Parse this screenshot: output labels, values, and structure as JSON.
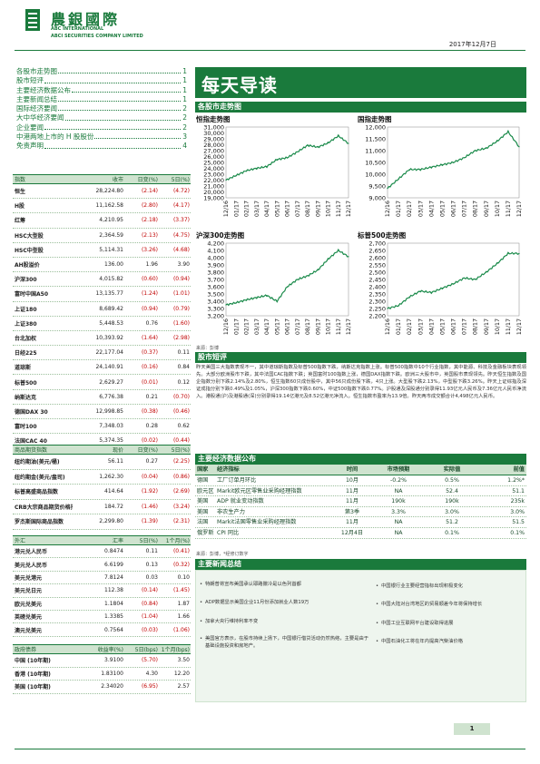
{
  "header": {
    "brand_cn": "農銀國際",
    "brand_en_1": "ABC INTERNATIONAL",
    "brand_en_2": "ABCI SECURITIES COMPANY LIMITED",
    "date": "2017年12月7日",
    "brand_color": "#1a7a3c"
  },
  "toc": [
    {
      "title": "各股市走势图",
      "page": "1"
    },
    {
      "title": "股市短评",
      "page": "1"
    },
    {
      "title": "主要经济数据公布",
      "page": "1"
    },
    {
      "title": "主要新闻总结",
      "page": "1"
    },
    {
      "title": "国际经济要闻",
      "page": "2"
    },
    {
      "title": "大中华经济要闻",
      "page": "2"
    },
    {
      "title": "企业要闻",
      "page": "2"
    },
    {
      "title": "中港两地上市的 H 股股份",
      "page": "3"
    },
    {
      "title": "免责声明",
      "page": "4"
    }
  ],
  "index_table": {
    "headers": [
      "指数",
      "收市",
      "日变(%)",
      "5日(%)"
    ],
    "rows": [
      [
        "恒生",
        "28,224.80",
        "(2.14)",
        "(4.72)"
      ],
      [
        "H股",
        "11,162.58",
        "(2.80)",
        "(4.17)"
      ],
      [
        "红筹",
        "4,210.95",
        "(2.18)",
        "(3.37)"
      ],
      [
        "HSC大型股",
        "2,364.59",
        "(2.13)",
        "(4.75)"
      ],
      [
        "HSC中型股",
        "5,114.31",
        "(3.26)",
        "(4.68)"
      ],
      [
        "AH股溢价",
        "136.00",
        "1.96",
        "3.90"
      ],
      [
        "沪深300",
        "4,015.82",
        "(0.60)",
        "(0.94)"
      ],
      [
        "富时中国A50",
        "13,135.77",
        "(1.24)",
        "(1.01)"
      ],
      [
        "上证180",
        "8,689.42",
        "(0.94)",
        "(0.79)"
      ],
      [
        "上证380",
        "5,448.53",
        "0.76",
        "(1.60)"
      ],
      [
        "台北加权",
        "10,393.92",
        "(1.64)",
        "(2.98)"
      ],
      [
        "日经225",
        "22,177.04",
        "(0.37)",
        "0.11"
      ],
      [
        "道琼斯",
        "24,140.91",
        "(0.16)",
        "0.84"
      ],
      [
        "标普500",
        "2,629.27",
        "(0.01)",
        "0.12"
      ],
      [
        "纳斯达克",
        "6,776.38",
        "0.21",
        "(0.70)"
      ],
      [
        "德国DAX 30",
        "12,998.85",
        "(0.38)",
        "(0.46)"
      ],
      [
        "富时100",
        "7,348.03",
        "0.28",
        "0.62"
      ],
      [
        "法国CAC 40",
        "5,374.35",
        "(0.02)",
        "(0.44)"
      ]
    ]
  },
  "commodity_table": {
    "headers": [
      "商品期货指数",
      "现价",
      "日变(%)",
      "5日(%)"
    ],
    "rows": [
      [
        "纽约期油(美元/桶)",
        "56.11",
        "0.27",
        "(2.25)"
      ],
      [
        "纽约期金(美元/盎司)",
        "1,262.30",
        "(0.04)",
        "(0.86)"
      ],
      [
        "标普高盛商品指数",
        "414.64",
        "(1.92)",
        "(2.69)"
      ],
      [
        "CRB大宗商品期货价格指数",
        "184.72",
        "(1.46)",
        "(3.24)"
      ],
      [
        "罗杰斯国际商品指数",
        "2,299.80",
        "(1.39)",
        "(2.31)"
      ]
    ]
  },
  "fx_table": {
    "headers": [
      "外汇",
      "汇率",
      "5日(%)",
      "1个月(%)"
    ],
    "rows": [
      [
        "港元兑人民币",
        "0.8474",
        "0.11",
        "(0.41)"
      ],
      [
        "美元兑人民币",
        "6.6199",
        "0.13",
        "(0.32)"
      ],
      [
        "美元兑港元",
        "7.8124",
        "0.03",
        "0.10"
      ],
      [
        "美元兑日元",
        "112.38",
        "(0.14)",
        "(1.45)"
      ],
      [
        "欧元兑美元",
        "1.1804",
        "(0.84)",
        "1.87"
      ],
      [
        "英磅兑美元",
        "1.3385",
        "(1.04)",
        "1.66"
      ],
      [
        "澳元兑美元",
        "0.7564",
        "(0.03)",
        "(1.06)"
      ]
    ]
  },
  "bond_table": {
    "headers": [
      "政府债券",
      "收益率(%)",
      "5日(bps)",
      "1个月(bps)"
    ],
    "rows": [
      [
        "中国 (10年期)",
        "3.9100",
        "(5.70)",
        "3.50"
      ],
      [
        "香港 (10年期)",
        "1.83100",
        "4.30",
        "12.20"
      ],
      [
        "美国 (10年期)",
        "2.34020",
        "(6.95)",
        "2.57"
      ]
    ]
  },
  "main": {
    "title": "每天导读",
    "charts_section": "各股市走势图",
    "source_label": "来源：彭博",
    "market_section": "股市短评",
    "market_text": "昨天美国三大指数表现不一，其中道琼斯指数及标普500指数下跌，纳斯达克指数上涨。标普500指数中10个行业指数，其中能源、科技及金融板块表现领先。大部分欧洲股市下跌，其中法国CAC指数下跌；英国富时100指数上涨，德国DAX指数下跌。欧洲三大股市中，英国股市表现领先。昨天恒生指数及国企指数分别下跌2.14%及2.80%，恒生指数60只成份股中，其中56只成份股下跌，4只上涨。大型股下跌2.13%，中型股下跌3.26%。昨天上证综指及深证成指分别下跌0.49%及1.05%，沪深300指数下跌0.60%，中证500指数下跌0.77%。沪股通及深股通分别录得11.93亿元人民币及7.36亿元人民币净流入。港股通(沪)及港股通(深)分别录得19.14亿港元及8.52亿港元净流入。恒生指数市盈率为13.9倍。昨天两市成交额合计4,498亿元人民币。"
  },
  "chart_data": [
    {
      "type": "line",
      "title": "恒指走势图",
      "x": [
        "12/16",
        "01/17",
        "02/17",
        "03/17",
        "04/17",
        "05/17",
        "06/17",
        "07/17",
        "08/17",
        "09/17",
        "10/17",
        "11/17",
        "12/17"
      ],
      "yticks": [
        "19,000",
        "20,000",
        "21,000",
        "22,000",
        "23,000",
        "24,000",
        "25,000",
        "26,000",
        "27,000",
        "28,000",
        "29,000",
        "30,000",
        "31,000"
      ],
      "ylim": [
        19000,
        31000
      ],
      "values": [
        22000,
        22800,
        23600,
        24000,
        24300,
        25500,
        25800,
        26800,
        27900,
        27600,
        28300,
        29500,
        28224
      ],
      "color": "#1a8a4a"
    },
    {
      "type": "line",
      "title": "国指走势图",
      "x": [
        "12/16",
        "01/17",
        "02/17",
        "03/17",
        "04/17",
        "05/17",
        "06/17",
        "07/17",
        "08/17",
        "09/17",
        "10/17",
        "11/17",
        "12/17"
      ],
      "yticks": [
        "9,000",
        "9,500",
        "10,000",
        "10,500",
        "11,000",
        "11,500",
        "12,000"
      ],
      "ylim": [
        9000,
        12000
      ],
      "values": [
        9400,
        9800,
        10200,
        10200,
        10300,
        10400,
        10500,
        10700,
        11000,
        11100,
        11400,
        11800,
        11162
      ],
      "color": "#1a8a4a"
    },
    {
      "type": "line",
      "title": "沪深300走势图",
      "x": [
        "12/16",
        "01/17",
        "02/17",
        "03/17",
        "04/17",
        "05/17",
        "06/17",
        "07/17",
        "08/17",
        "09/17",
        "10/17",
        "11/17",
        "12/17"
      ],
      "yticks": [
        "3,200",
        "3,300",
        "3,400",
        "3,500",
        "3,600",
        "3,700",
        "3,800",
        "3,900",
        "4,000",
        "4,100",
        "4,200"
      ],
      "ylim": [
        3200,
        4200
      ],
      "values": [
        3350,
        3380,
        3420,
        3450,
        3480,
        3400,
        3600,
        3700,
        3750,
        3830,
        3980,
        4100,
        4015
      ],
      "color": "#1a8a4a"
    },
    {
      "type": "line",
      "title": "标普500走势图",
      "x": [
        "12/16",
        "01/17",
        "02/17",
        "03/17",
        "04/17",
        "05/17",
        "06/17",
        "07/17",
        "08/17",
        "09/17",
        "10/17",
        "11/17",
        "12/17"
      ],
      "yticks": [
        "2,200",
        "2,250",
        "2,300",
        "2,350",
        "2,400",
        "2,450",
        "2,500",
        "2,550",
        "2,600",
        "2,650",
        "2,700"
      ],
      "ylim": [
        2200,
        2700
      ],
      "values": [
        2250,
        2270,
        2330,
        2370,
        2360,
        2390,
        2420,
        2460,
        2450,
        2500,
        2560,
        2630,
        2629
      ],
      "color": "#1a8a4a"
    }
  ],
  "economic": {
    "section": "主要经济数据公布",
    "headers": [
      "国家",
      "经济指标",
      "时间",
      "市场预期",
      "实际值",
      "前值"
    ],
    "rows": [
      [
        "德国",
        "工厂订单月环比",
        "10月",
        "-0.2%",
        "0.5%",
        "1.2%*"
      ],
      [
        "欧元区",
        "Markit欧元区零售业采购经理指数",
        "11月",
        "NA",
        "52.4",
        "51.1"
      ],
      [
        "美国",
        "ADP 就业变动指数",
        "11月",
        "190k",
        "190k",
        "235k"
      ],
      [
        "美国",
        "非农生产力",
        "第3季",
        "3.3%",
        "3.0%",
        "3.0%"
      ],
      [
        "法国",
        "Markit法国零售业采购经理指数",
        "11月",
        "NA",
        "51.2",
        "51.5"
      ],
      [
        "俄罗斯",
        "CPI 同比",
        "12月4日",
        "NA",
        "0.1%",
        "0.1%"
      ]
    ],
    "source": "来源：彭博，*经修订数字"
  },
  "news": {
    "section": "主要新闻总结",
    "left": [
      "特朗普将宣布美国承认耶路撒冷是以色列首都",
      "ADP数据显示美国企业11月份添加就业人数19万",
      "加拿大央行维持利率不变",
      "美国官方表示，在股市持续上扬下，中国银行借贷活动仍然热络，主要是由于基础设施投资和房地产。"
    ],
    "right": [
      "中国银行业主要经营指标出现积极变化",
      "中国大陆对台湾地区的贸易顺差今年将保持增长",
      "中国工业互联网平台建设取得进展",
      "中国石油化工将在年内提高汽柴油价格"
    ]
  },
  "footer": {
    "page": "1"
  }
}
